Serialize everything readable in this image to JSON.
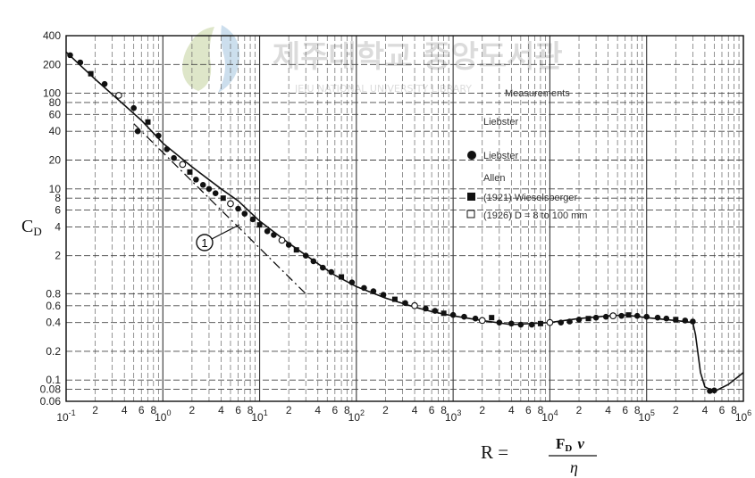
{
  "chart_data": {
    "type": "scatter",
    "x_scale": "log",
    "y_scale": "log",
    "xlim": [
      0.1,
      1000000
    ],
    "ylim": [
      0.06,
      400
    ],
    "grid": true,
    "ylabel": "C",
    "ylabel_sub": "D",
    "xlabel": {
      "lhs": "R =",
      "numerator": "F",
      "numerator_sub": "D",
      "numerator_var": "v",
      "denominator": "η"
    },
    "x_major_ticks": [
      {
        "value": 0.1,
        "mantissa": "10",
        "exp": "-1"
      },
      {
        "value": 1,
        "mantissa": "10",
        "exp": "0"
      },
      {
        "value": 10,
        "mantissa": "10",
        "exp": "1"
      },
      {
        "value": 100,
        "mantissa": "10",
        "exp": "2"
      },
      {
        "value": 1000,
        "mantissa": "10",
        "exp": "3"
      },
      {
        "value": 10000,
        "mantissa": "10",
        "exp": "4"
      },
      {
        "value": 100000,
        "mantissa": "10",
        "exp": "5"
      },
      {
        "value": 1000000,
        "mantissa": "10",
        "exp": "6"
      }
    ],
    "x_minor_ticks": [
      {
        "value": 0.2,
        "label": "2"
      },
      {
        "value": 0.4,
        "label": "4"
      },
      {
        "value": 0.6,
        "label": "6"
      },
      {
        "value": 0.8,
        "label": "8"
      },
      {
        "value": 2,
        "label": "2"
      },
      {
        "value": 4,
        "label": "4"
      },
      {
        "value": 6,
        "label": "6"
      },
      {
        "value": 8,
        "label": "8"
      },
      {
        "value": 20,
        "label": "2"
      },
      {
        "value": 40,
        "label": "4"
      },
      {
        "value": 60,
        "label": "6"
      },
      {
        "value": 80,
        "label": "8"
      },
      {
        "value": 200,
        "label": "2"
      },
      {
        "value": 400,
        "label": "4"
      },
      {
        "value": 600,
        "label": "6"
      },
      {
        "value": 800,
        "label": "8"
      },
      {
        "value": 2000,
        "label": "2"
      },
      {
        "value": 4000,
        "label": "4"
      },
      {
        "value": 6000,
        "label": "6"
      },
      {
        "value": 8000,
        "label": "8"
      },
      {
        "value": 20000,
        "label": "2"
      },
      {
        "value": 40000,
        "label": "4"
      },
      {
        "value": 60000,
        "label": "6"
      },
      {
        "value": 80000,
        "label": "8"
      },
      {
        "value": 200000,
        "label": "2"
      },
      {
        "value": 400000,
        "label": "4"
      },
      {
        "value": 600000,
        "label": "6"
      },
      {
        "value": 800000,
        "label": "8"
      }
    ],
    "y_ticks": [
      {
        "value": 400,
        "label": "400"
      },
      {
        "value": 200,
        "label": "200"
      },
      {
        "value": 100,
        "label": "100"
      },
      {
        "value": 80,
        "label": "80"
      },
      {
        "value": 60,
        "label": "60"
      },
      {
        "value": 40,
        "label": "40"
      },
      {
        "value": 20,
        "label": "20"
      },
      {
        "value": 10,
        "label": "10"
      },
      {
        "value": 8,
        "label": "8"
      },
      {
        "value": 6,
        "label": "6"
      },
      {
        "value": 4,
        "label": "4"
      },
      {
        "value": 2,
        "label": "2"
      },
      {
        "value": 0.8,
        "label": "0.8"
      },
      {
        "value": 0.6,
        "label": "0.6"
      },
      {
        "value": 0.4,
        "label": "0.4"
      },
      {
        "value": 0.2,
        "label": "0.2"
      },
      {
        "value": 0.1,
        "label": "0.1"
      },
      {
        "value": 0.08,
        "label": "0.08"
      },
      {
        "value": 0.06,
        "label": "0.06"
      }
    ],
    "legend": {
      "heading": "Measurements",
      "entries": [
        {
          "marker": "none",
          "text": "Liebster"
        },
        {
          "marker": "filled-circle",
          "text": "Liebster"
        },
        {
          "marker": "none",
          "text": "Allen"
        },
        {
          "marker": "filled-square",
          "text": "(1921) Wieselsberger"
        },
        {
          "marker": "open-square",
          "text": "(1926) D = 8 to 100 mm"
        }
      ]
    },
    "annotation": {
      "label": "1",
      "x": 30,
      "y": 2.4
    },
    "series": [
      {
        "name": "C_D (measured curve)",
        "style": "solid",
        "x": [
          0.1,
          0.2,
          0.4,
          0.6,
          1,
          2,
          4,
          6,
          10,
          20,
          40,
          60,
          100,
          200,
          400,
          600,
          1000,
          2000,
          4000,
          10000,
          20000,
          40000,
          60000,
          100000,
          200000,
          300000,
          320000,
          360000,
          400000,
          500000,
          700000,
          1000000
        ],
        "y": [
          270,
          140,
          75,
          52,
          30,
          17,
          10,
          7.5,
          4.6,
          2.7,
          1.65,
          1.25,
          0.95,
          0.72,
          0.58,
          0.52,
          0.47,
          0.42,
          0.38,
          0.4,
          0.44,
          0.47,
          0.48,
          0.45,
          0.42,
          0.4,
          0.3,
          0.12,
          0.085,
          0.076,
          0.09,
          0.12
        ]
      },
      {
        "name": "1",
        "style": "dashdot",
        "x": [
          0.5,
          1,
          2,
          4,
          8,
          12,
          20,
          30
        ],
        "y": [
          48,
          24,
          12,
          6,
          3,
          2,
          1.2,
          0.8
        ]
      },
      {
        "name": "data points",
        "style": "markers",
        "x": [
          0.11,
          0.14,
          0.18,
          0.25,
          0.35,
          0.5,
          0.55,
          0.7,
          0.9,
          1.1,
          1.3,
          1.6,
          1.9,
          2.2,
          2.6,
          3.0,
          3.5,
          4.2,
          5,
          6,
          7,
          8.5,
          10,
          12,
          14,
          17,
          20,
          24,
          30,
          36,
          45,
          55,
          70,
          90,
          120,
          150,
          190,
          250,
          320,
          400,
          520,
          650,
          800,
          1000,
          1300,
          1700,
          2000,
          2500,
          3000,
          4000,
          5000,
          6500,
          8000,
          10000,
          13000,
          16000,
          20000,
          25000,
          30000,
          38000,
          45000,
          55000,
          65000,
          80000,
          100000,
          130000,
          160000,
          200000,
          250000,
          300000,
          450000,
          500000
        ],
        "y": [
          250,
          210,
          160,
          125,
          95,
          70,
          40,
          50,
          36,
          26,
          21,
          18,
          15,
          12.5,
          11,
          10,
          9,
          8,
          7,
          6.2,
          5.5,
          4.8,
          4.2,
          3.6,
          3.3,
          2.9,
          2.6,
          2.3,
          2.0,
          1.75,
          1.5,
          1.35,
          1.2,
          1.05,
          0.92,
          0.85,
          0.78,
          0.7,
          0.64,
          0.6,
          0.56,
          0.53,
          0.5,
          0.48,
          0.46,
          0.44,
          0.42,
          0.45,
          0.4,
          0.39,
          0.38,
          0.38,
          0.39,
          0.4,
          0.4,
          0.41,
          0.43,
          0.44,
          0.45,
          0.46,
          0.47,
          0.47,
          0.48,
          0.47,
          0.46,
          0.45,
          0.44,
          0.43,
          0.42,
          0.41,
          0.077,
          0.078
        ]
      }
    ]
  },
  "watermark": {
    "korean": "제주대학교 중앙도서관",
    "english": "JEJU NATIONAL UNIVERSITY LIBRARY"
  }
}
